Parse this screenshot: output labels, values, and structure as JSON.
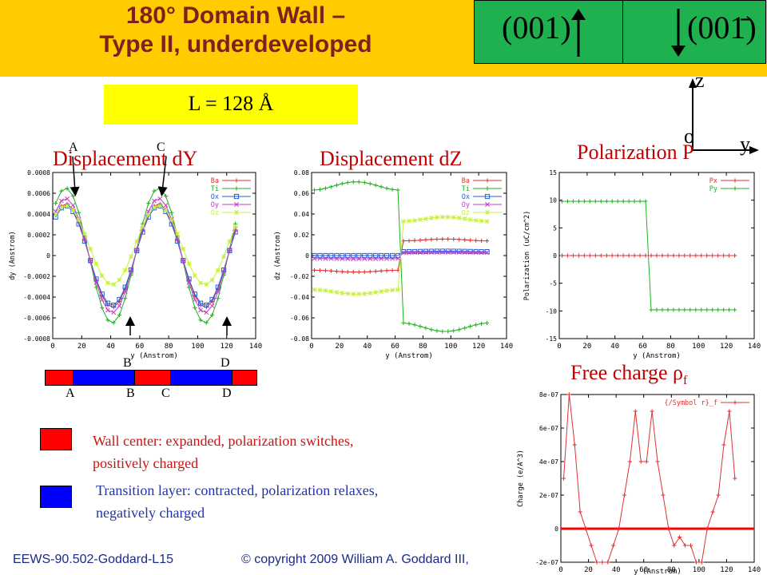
{
  "slide": {
    "title_line1": "180° Domain Wall –",
    "title_line2": "Type II, underdeveloped",
    "left_direction": "(001)",
    "right_direction": "(001̄)",
    "length_label": "L = 128 Å",
    "axis_z": "z",
    "axis_o": "o",
    "axis_y": "y",
    "panel_titles": {
      "dy": "Displacement  dY",
      "dz": "Displacement  dZ",
      "pol": "Polarization P",
      "charge": "Free charge ρ"
    },
    "charge_subscript": "f",
    "letters_top_dy": [
      "A",
      "C"
    ],
    "letters_mid": [
      "B",
      "D"
    ],
    "letters_bar": [
      "A",
      "B",
      "C",
      "D"
    ],
    "legend_red_line1": "Wall center: expanded, polarization switches,",
    "legend_red_line2": "positively charged",
    "legend_blue_line1": "Transition layer: contracted, polarization relaxes,",
    "legend_blue_line2": "negatively charged",
    "footer_left": "EEWS-90.502-Goddard-L15",
    "footer_right": "© copyright 2009 William A. Goddard III,",
    "colors": {
      "header": "#ffcc00",
      "wall": "#ff0000",
      "transition": "#0000ff",
      "title": "#7f1f1f",
      "panel_title": "#c00000"
    }
  },
  "chart_data": [
    {
      "type": "line",
      "xlabel": "y (Anstrom)",
      "ylabel": "dy (Anstrom)",
      "xlim": [
        0,
        140
      ],
      "ylim": [
        -0.0008,
        0.0008
      ],
      "xticks": [
        0,
        20,
        40,
        60,
        80,
        100,
        120,
        140
      ],
      "yticks": [
        -0.0008,
        -0.0006,
        -0.0004,
        -0.0002,
        0,
        0.0002,
        0.0004,
        0.0006,
        0.0008
      ],
      "ytick_labels": [
        "-0.0008",
        "-0.0006",
        "-0.0004",
        "-0.0002",
        "0",
        "0.0002",
        "0.0004",
        "0.0006",
        "0.0008"
      ],
      "series": [
        {
          "name": "Ba",
          "color": "#e03030",
          "marker": "+",
          "amplitude": 0.0005,
          "offset": 0.0,
          "phase_x": 9.0
        },
        {
          "name": "Ti",
          "color": "#20b020",
          "marker": "+",
          "amplitude": 0.00065,
          "offset": 0.0,
          "phase_x": 9.0
        },
        {
          "name": "Ox",
          "color": "#2060e0",
          "marker": "square",
          "amplitude": 0.00048,
          "offset": 0.0,
          "phase_x": 9.0
        },
        {
          "name": "Oy",
          "color": "#c040c0",
          "marker": "x",
          "amplitude": 0.00055,
          "offset": 0.0,
          "phase_x": 9.0
        },
        {
          "name": "Oz",
          "color": "#c8f040",
          "marker": "*",
          "amplitude": 0.00038,
          "offset": 0.0001,
          "phase_x": 9.0
        }
      ]
    },
    {
      "type": "line",
      "xlabel": "y (Anstrom)",
      "ylabel": "dz (Anstrom)",
      "xlim": [
        0,
        140
      ],
      "ylim": [
        -0.08,
        0.08
      ],
      "xticks": [
        0,
        20,
        40,
        60,
        80,
        100,
        120,
        140
      ],
      "yticks": [
        -0.08,
        -0.06,
        -0.04,
        -0.02,
        0,
        0.02,
        0.04,
        0.06,
        0.08
      ],
      "ytick_labels": [
        "-0.08",
        "-0.06",
        "-0.04",
        "-0.02",
        "0",
        "0.02",
        "0.04",
        "0.06",
        "0.08"
      ],
      "switch_x": 65,
      "series": [
        {
          "name": "Ba",
          "color": "#e03030",
          "marker": "+",
          "left": -0.015,
          "right": 0.015
        },
        {
          "name": "Ti",
          "color": "#20b020",
          "marker": "+",
          "left": 0.067,
          "right": -0.069
        },
        {
          "name": "Ox",
          "color": "#2060e0",
          "marker": "square",
          "left": 0.0,
          "right": 0.004
        },
        {
          "name": "Oy",
          "color": "#c040c0",
          "marker": "x",
          "left": -0.003,
          "right": 0.003
        },
        {
          "name": "Oz",
          "color": "#c8f040",
          "marker": "*",
          "left": -0.035,
          "right": 0.035
        }
      ]
    },
    {
      "type": "line",
      "xlabel": "y (Anstrom)",
      "ylabel": "Polarization (uC/cm^2)",
      "xlim": [
        0,
        140
      ],
      "ylim": [
        -15,
        15
      ],
      "xticks": [
        0,
        20,
        40,
        60,
        80,
        100,
        120,
        140
      ],
      "yticks": [
        -15,
        -10,
        -5,
        0,
        5,
        10,
        15
      ],
      "ytick_labels": [
        "-15",
        "-10",
        "-5",
        "0",
        "5",
        "10",
        "15"
      ],
      "switch_x": 65,
      "series": [
        {
          "name": "Px",
          "color": "#e03030",
          "marker": "+",
          "left": 0,
          "right": 0
        },
        {
          "name": "Py",
          "color": "#20b020",
          "marker": "+",
          "left": 9.8,
          "right": -9.8
        }
      ]
    },
    {
      "type": "line",
      "xlabel": "y (Anstrom)",
      "ylabel": "Charge (e/A^3)",
      "xlim": [
        0,
        140
      ],
      "ylim": [
        -2e-07,
        8e-07
      ],
      "xticks": [
        0,
        20,
        40,
        60,
        80,
        100,
        120,
        140
      ],
      "yticks": [
        -2e-07,
        0,
        2e-07,
        4e-07,
        6e-07,
        8e-07
      ],
      "ytick_labels": [
        "-2e-07",
        "0",
        "2e-07",
        "4e-07",
        "6e-07",
        "8e-07"
      ],
      "series": [
        {
          "name": "{/Symbol r}_f",
          "color": "#e03030",
          "marker": "+",
          "x": [
            2,
            6,
            10,
            14,
            18,
            22,
            26,
            30,
            34,
            38,
            42,
            46,
            50,
            54,
            58,
            62,
            66,
            70,
            74,
            78,
            82,
            86,
            90,
            94,
            98,
            102,
            106,
            110,
            114,
            118,
            122,
            126
          ],
          "y": [
            3e-07,
            8e-07,
            5e-07,
            1e-07,
            0,
            -1e-07,
            -2e-07,
            -2e-07,
            -2e-07,
            -1e-07,
            0,
            2e-07,
            4e-07,
            7e-07,
            4e-07,
            4e-07,
            7e-07,
            4e-07,
            2e-07,
            0,
            -1e-07,
            -5e-08,
            -1e-07,
            -1e-07,
            -2e-07,
            -2e-07,
            0,
            1e-07,
            2e-07,
            5e-07,
            7e-07,
            3e-07
          ]
        }
      ]
    }
  ]
}
